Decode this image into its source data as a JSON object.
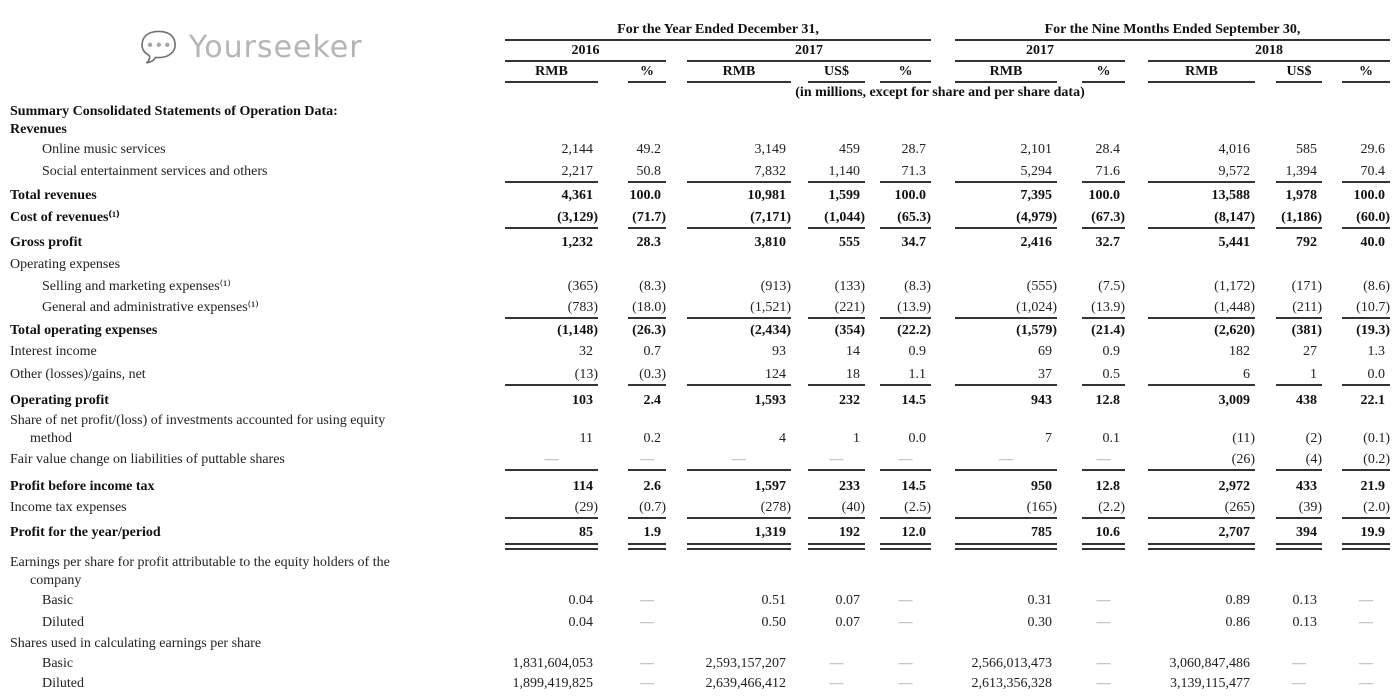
{
  "header": {
    "year_group": "For the Year Ended December 31,",
    "nine_month_group": "For the Nine Months Ended September 30,",
    "years": [
      "2016",
      "2017",
      "2017",
      "2018"
    ],
    "currency_cols": [
      "RMB",
      "%",
      "RMB",
      "US$",
      "%",
      "RMB",
      "%",
      "RMB",
      "US$",
      "%"
    ],
    "units_note": "(in millions, except for share and per share data)"
  },
  "rows": [
    {
      "label": "Summary Consolidated Statements of Operation Data:",
      "bold": true,
      "indent": 0,
      "values": []
    },
    {
      "label": "Revenues",
      "bold": true,
      "indent": 0,
      "values": []
    },
    {
      "label": "Online music services",
      "indent": 2,
      "values": [
        "2,144",
        "49.2",
        "3,149",
        "459",
        "28.7",
        "2,101",
        "28.4",
        "4,016",
        "585",
        "29.6"
      ]
    },
    {
      "label": "Social entertainment services and others",
      "indent": 2,
      "values": [
        "2,217",
        "50.8",
        "7,832",
        "1,140",
        "71.3",
        "5,294",
        "71.6",
        "9,572",
        "1,394",
        "70.4"
      ]
    },
    {
      "label": "Total revenues",
      "bold": true,
      "indent": 0,
      "values": [
        "4,361",
        "100.0",
        "10,981",
        "1,599",
        "100.0",
        "7,395",
        "100.0",
        "13,588",
        "1,978",
        "100.0"
      ]
    },
    {
      "label": "Cost of revenues⁽¹⁾",
      "bold": true,
      "indent": 0,
      "values": [
        "(3,129)",
        "(71.7)",
        "(7,171)",
        "(1,044)",
        "(65.3)",
        "(4,979)",
        "(67.3)",
        "(8,147)",
        "(1,186)",
        "(60.0)"
      ]
    },
    {
      "label": "Gross profit",
      "bold": true,
      "indent": 0,
      "values": [
        "1,232",
        "28.3",
        "3,810",
        "555",
        "34.7",
        "2,416",
        "32.7",
        "5,441",
        "792",
        "40.0"
      ]
    },
    {
      "label": "Operating expenses",
      "indent": 0,
      "values": []
    },
    {
      "label": "Selling and marketing expenses⁽¹⁾",
      "indent": 2,
      "values": [
        "(365)",
        "(8.3)",
        "(913)",
        "(133)",
        "(8.3)",
        "(555)",
        "(7.5)",
        "(1,172)",
        "(171)",
        "(8.6)"
      ]
    },
    {
      "label": "General and administrative expenses⁽¹⁾",
      "indent": 2,
      "values": [
        "(783)",
        "(18.0)",
        "(1,521)",
        "(221)",
        "(13.9)",
        "(1,024)",
        "(13.9)",
        "(1,448)",
        "(211)",
        "(10.7)"
      ]
    },
    {
      "label": "Total operating expenses",
      "bold": true,
      "indent": 0,
      "values": [
        "(1,148)",
        "(26.3)",
        "(2,434)",
        "(354)",
        "(22.2)",
        "(1,579)",
        "(21.4)",
        "(2,620)",
        "(381)",
        "(19.3)"
      ]
    },
    {
      "label": "Interest income",
      "indent": 0,
      "values": [
        "32",
        "0.7",
        "93",
        "14",
        "0.9",
        "69",
        "0.9",
        "182",
        "27",
        "1.3"
      ]
    },
    {
      "label": "Other (losses)/gains, net",
      "indent": 0,
      "values": [
        "(13)",
        "(0.3)",
        "124",
        "18",
        "1.1",
        "37",
        "0.5",
        "6",
        "1",
        "0.0"
      ]
    },
    {
      "label": "Operating profit",
      "bold": true,
      "indent": 0,
      "values": [
        "103",
        "2.4",
        "1,593",
        "232",
        "14.5",
        "943",
        "12.8",
        "3,009",
        "438",
        "22.1"
      ]
    },
    {
      "label": "Share of net profit/(loss) of investments accounted for using equity",
      "label2": "method",
      "indent": 0,
      "values": [
        "11",
        "0.2",
        "4",
        "1",
        "0.0",
        "7",
        "0.1",
        "(11)",
        "(2)",
        "(0.1)"
      ]
    },
    {
      "label": "Fair value change on liabilities of puttable shares",
      "indent": 0,
      "values": [
        "—",
        "—",
        "—",
        "—",
        "—",
        "—",
        "—",
        "(26)",
        "(4)",
        "(0.2)"
      ]
    },
    {
      "label": "Profit before income tax",
      "bold": true,
      "indent": 0,
      "values": [
        "114",
        "2.6",
        "1,597",
        "233",
        "14.5",
        "950",
        "12.8",
        "2,972",
        "433",
        "21.9"
      ]
    },
    {
      "label": "Income tax expenses",
      "indent": 0,
      "values": [
        "(29)",
        "(0.7)",
        "(278)",
        "(40)",
        "(2.5)",
        "(165)",
        "(2.2)",
        "(265)",
        "(39)",
        "(2.0)"
      ]
    },
    {
      "label": "Profit for the year/period",
      "bold": true,
      "indent": 0,
      "values": [
        "85",
        "1.9",
        "1,319",
        "192",
        "12.0",
        "785",
        "10.6",
        "2,707",
        "394",
        "19.9"
      ]
    },
    {
      "label": "Earnings per share for profit attributable to the equity holders of the",
      "label2": "company",
      "indent": 0,
      "values": []
    },
    {
      "label": "Basic",
      "indent": 2,
      "values": [
        "0.04",
        "—",
        "0.51",
        "0.07",
        "—",
        "0.31",
        "—",
        "0.89",
        "0.13",
        "—"
      ]
    },
    {
      "label": "Diluted",
      "indent": 2,
      "values": [
        "0.04",
        "—",
        "0.50",
        "0.07",
        "—",
        "0.30",
        "—",
        "0.86",
        "0.13",
        "—"
      ]
    },
    {
      "label": "Shares used in calculating earnings per share",
      "indent": 0,
      "values": []
    },
    {
      "label": "Basic",
      "indent": 2,
      "values": [
        "1,831,604,053",
        "—",
        "2,593,157,207",
        "—",
        "—",
        "2,566,013,473",
        "—",
        "3,060,847,486",
        "—",
        "—"
      ]
    },
    {
      "label": "Diluted",
      "indent": 2,
      "values": [
        "1,899,419,825",
        "—",
        "2,639,466,412",
        "—",
        "—",
        "2,613,356,328",
        "—",
        "3,139,115,477",
        "—",
        "—"
      ]
    }
  ],
  "watermark": {
    "text": "Yourseeker",
    "icon": "wechat-icon"
  }
}
